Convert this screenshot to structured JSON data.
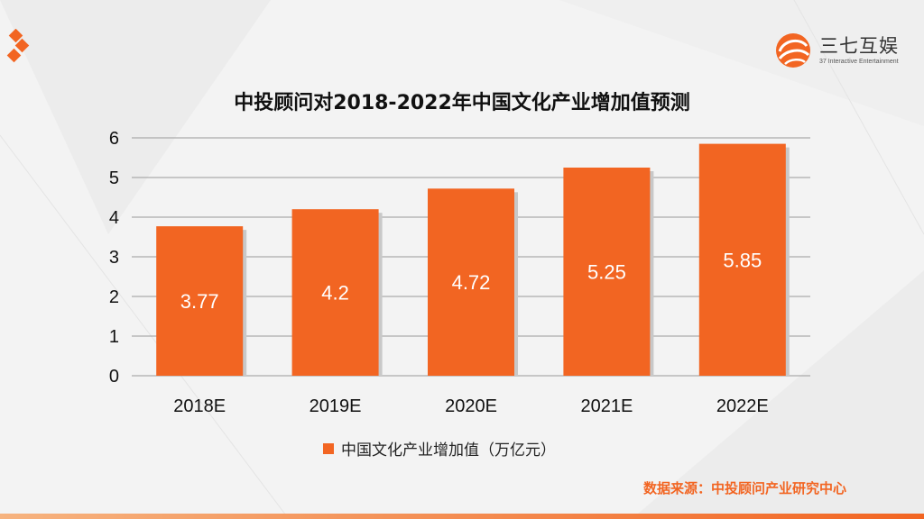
{
  "brand": {
    "name_cn": "三七互娱",
    "name_en": "37 Interactive Entertainment",
    "accent_color": "#f26522"
  },
  "chart_data": {
    "type": "bar",
    "title": "中投顾问对2018-2022年中国文化产业增加值预测",
    "categories": [
      "2018E",
      "2019E",
      "2020E",
      "2021E",
      "2022E"
    ],
    "series": [
      {
        "name": "中国文化产业增加值（万亿元）",
        "values": [
          3.77,
          4.2,
          4.72,
          5.25,
          5.85
        ]
      }
    ],
    "data_labels": [
      "3.77",
      "4.2",
      "4.72",
      "5.25",
      "5.85"
    ],
    "yticks": [
      "0",
      "1",
      "2",
      "3",
      "4",
      "5",
      "6"
    ],
    "ylim": [
      0,
      6
    ],
    "grid": true,
    "legend_position": "bottom",
    "bar_color": "#f26522"
  },
  "footer": {
    "source": "数据来源：中投顾问产业研究中心",
    "source_color": "#f26522"
  }
}
